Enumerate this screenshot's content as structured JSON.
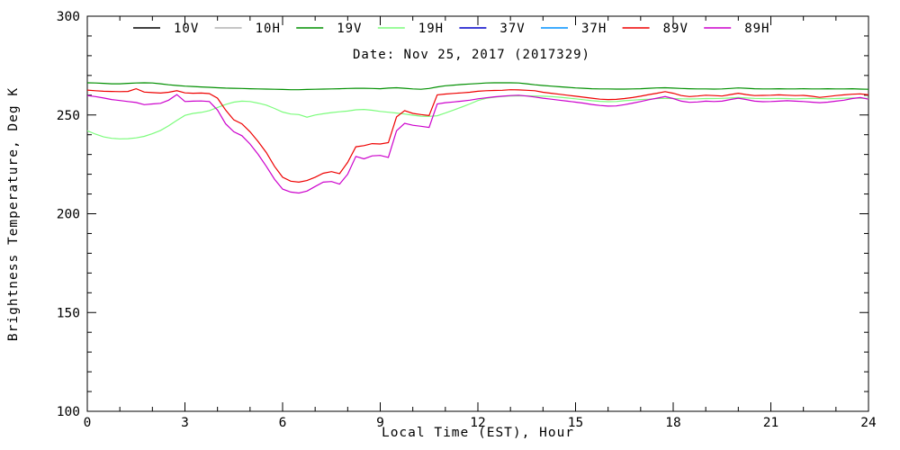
{
  "chart_data": {
    "type": "line",
    "title": "Date: Nov 25, 2017 (2017329)",
    "xlabel": "Local Time (EST), Hour",
    "ylabel": "Brightness Temperature, Deg K",
    "xlim": [
      0,
      24
    ],
    "ylim": [
      100,
      300
    ],
    "x_major_ticks": [
      0,
      3,
      6,
      9,
      12,
      15,
      18,
      21,
      24
    ],
    "x_minor_step": 1,
    "y_major_ticks": [
      100,
      150,
      200,
      250,
      300
    ],
    "y_minor_step": 10,
    "grid": false,
    "legend_position": "top-inside",
    "frame_color": "#000000",
    "legend": [
      {
        "label": "10V",
        "color": "#000000"
      },
      {
        "label": "10H",
        "color": "#b3b3b3"
      },
      {
        "label": "19V",
        "color": "#008f00"
      },
      {
        "label": "19H",
        "color": "#7cfc7c"
      },
      {
        "label": "37V",
        "color": "#0000c8"
      },
      {
        "label": "37H",
        "color": "#0090ff"
      },
      {
        "label": "89V",
        "color": "#ee0000"
      },
      {
        "label": "89H",
        "color": "#cc00cc"
      }
    ],
    "x_start": 0,
    "x_step": 0.25,
    "series": [
      {
        "name": "19V",
        "color": "#008f00",
        "values": [
          266.3,
          266.2,
          266.0,
          265.8,
          265.8,
          266.0,
          266.2,
          266.3,
          266.2,
          265.8,
          265.3,
          264.9,
          264.6,
          264.4,
          264.2,
          264.0,
          263.8,
          263.6,
          263.5,
          263.4,
          263.3,
          263.2,
          263.1,
          263.0,
          262.9,
          262.8,
          262.8,
          262.9,
          263.0,
          263.1,
          263.2,
          263.3,
          263.4,
          263.5,
          263.5,
          263.4,
          263.3,
          263.6,
          263.8,
          263.5,
          263.2,
          263.0,
          263.4,
          264.2,
          264.8,
          265.1,
          265.4,
          265.7,
          265.9,
          266.2,
          266.3,
          266.3,
          266.3,
          266.2,
          265.8,
          265.3,
          264.9,
          264.6,
          264.3,
          264.0,
          263.7,
          263.5,
          263.3,
          263.2,
          263.2,
          263.1,
          263.1,
          263.2,
          263.3,
          263.5,
          263.7,
          263.8,
          263.6,
          263.4,
          263.3,
          263.2,
          263.2,
          263.1,
          263.2,
          263.4,
          263.7,
          263.5,
          263.3,
          263.2,
          263.2,
          263.3,
          263.2,
          263.2,
          263.3,
          263.2,
          263.2,
          263.3,
          263.2,
          263.2,
          263.3,
          263.1,
          263.0
        ]
      },
      {
        "name": "19H",
        "color": "#7cfc7c",
        "values": [
          242.0,
          240.3,
          238.9,
          238.2,
          237.9,
          238.0,
          238.4,
          239.2,
          240.5,
          242.2,
          244.5,
          247.3,
          249.8,
          250.8,
          251.3,
          252.2,
          253.8,
          255.3,
          256.5,
          257.0,
          256.8,
          256.0,
          255.0,
          253.3,
          251.5,
          250.5,
          250.2,
          248.9,
          250.0,
          250.6,
          251.2,
          251.6,
          252.0,
          252.6,
          252.8,
          252.4,
          251.8,
          251.4,
          251.0,
          250.5,
          249.9,
          249.4,
          249.3,
          249.6,
          251.0,
          252.5,
          254.0,
          255.6,
          257.3,
          258.4,
          259.0,
          259.4,
          259.6,
          259.7,
          259.7,
          259.6,
          259.5,
          259.3,
          259.0,
          258.6,
          258.2,
          257.7,
          257.2,
          256.9,
          256.7,
          256.8,
          257.2,
          257.5,
          257.8,
          258.0,
          258.3,
          258.4,
          258.3,
          258.2,
          258.1,
          258.2,
          258.3,
          258.3,
          258.4,
          258.6,
          258.8,
          258.6,
          258.4,
          258.3,
          258.3,
          258.4,
          258.3,
          258.2,
          258.3,
          258.4,
          258.3,
          258.2,
          258.3,
          258.5,
          258.6,
          258.5,
          258.4
        ]
      },
      {
        "name": "89V",
        "color": "#ee0000",
        "values": [
          262.6,
          262.3,
          262.0,
          261.9,
          261.8,
          261.9,
          263.3,
          261.6,
          261.3,
          261.1,
          261.5,
          262.3,
          261.2,
          261.0,
          261.1,
          260.8,
          258.5,
          252.5,
          247.5,
          245.5,
          241.5,
          236.5,
          231.0,
          224.0,
          218.5,
          216.5,
          216.0,
          216.8,
          218.5,
          220.5,
          221.3,
          220.3,
          226.0,
          233.9,
          234.5,
          235.5,
          235.3,
          236.0,
          249.0,
          252.2,
          250.8,
          250.2,
          249.7,
          260.2,
          260.6,
          260.9,
          261.2,
          261.5,
          262.0,
          262.3,
          262.4,
          262.5,
          262.8,
          262.7,
          262.5,
          262.3,
          261.5,
          261.0,
          260.5,
          260.0,
          259.5,
          259.0,
          258.5,
          258.0,
          257.8,
          257.9,
          258.3,
          258.8,
          259.5,
          260.3,
          261.0,
          261.8,
          261.0,
          259.8,
          259.3,
          259.6,
          260.0,
          259.8,
          259.6,
          260.3,
          261.0,
          260.3,
          259.8,
          259.9,
          260.0,
          260.2,
          260.0,
          259.8,
          259.9,
          259.5,
          258.9,
          259.3,
          259.8,
          260.2,
          260.5,
          260.7,
          260.2
        ]
      },
      {
        "name": "89H",
        "color": "#cc00cc",
        "values": [
          259.8,
          259.3,
          258.6,
          257.8,
          257.3,
          256.8,
          256.3,
          255.2,
          255.6,
          255.9,
          257.5,
          260.3,
          256.8,
          257.0,
          257.1,
          256.8,
          252.5,
          245.5,
          241.5,
          239.5,
          235.3,
          230.0,
          224.0,
          217.5,
          212.5,
          211.0,
          210.5,
          211.5,
          213.8,
          216.0,
          216.3,
          215.0,
          220.0,
          229.0,
          227.8,
          229.3,
          229.5,
          228.5,
          242.0,
          245.8,
          244.8,
          244.3,
          243.7,
          255.6,
          256.2,
          256.6,
          257.0,
          257.5,
          258.2,
          258.7,
          259.2,
          259.5,
          259.8,
          260.0,
          259.6,
          259.1,
          258.5,
          258.0,
          257.5,
          257.0,
          256.5,
          256.0,
          255.3,
          254.8,
          254.5,
          254.6,
          255.2,
          256.0,
          256.8,
          257.7,
          258.5,
          259.3,
          258.3,
          257.0,
          256.4,
          256.6,
          257.0,
          256.8,
          257.0,
          257.8,
          258.5,
          257.8,
          257.0,
          256.7,
          256.8,
          257.0,
          257.2,
          257.0,
          256.8,
          256.5,
          256.2,
          256.5,
          257.0,
          257.5,
          258.3,
          258.8,
          258.0
        ]
      }
    ]
  }
}
